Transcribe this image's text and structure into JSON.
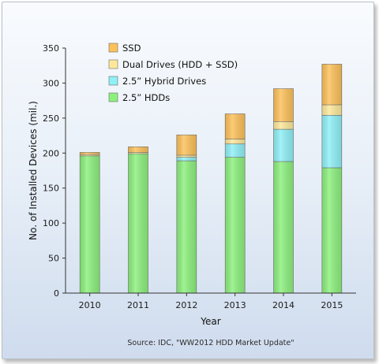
{
  "chart_data": {
    "type": "bar",
    "stacked": true,
    "categories": [
      "2010",
      "2011",
      "2012",
      "2013",
      "2014",
      "2015"
    ],
    "series": [
      {
        "name": "2.5” HDDs",
        "color": "#8cf07d",
        "values": [
          196,
          199,
          189,
          194,
          188,
          179
        ]
      },
      {
        "name": "2.5” Hybrid Drives",
        "color": "#8ff0f6",
        "values": [
          0,
          0,
          5,
          19,
          46,
          75
        ]
      },
      {
        "name": "Dual Drives (HDD + SSD)",
        "color": "#fde89a",
        "values": [
          2,
          2,
          3,
          7,
          11,
          15
        ]
      },
      {
        "name": "SSD",
        "color": "#fdc15a",
        "values": [
          3,
          8,
          29,
          36,
          47,
          58
        ]
      }
    ],
    "legend_order": [
      "SSD",
      "Dual Drives (HDD + SSD)",
      "2.5” Hybrid Drives",
      "2.5” HDDs"
    ],
    "legend_placement": "top-left",
    "xlabel": "Year",
    "ylabel": "No. of Installed Devices (mil.)",
    "ylim": [
      0,
      350
    ],
    "yticks": [
      "0",
      "50",
      "100",
      "150",
      "200",
      "250",
      "300",
      "350"
    ],
    "grid": false,
    "source": "Source: IDC, \"WW2012 HDD Market Update\""
  }
}
